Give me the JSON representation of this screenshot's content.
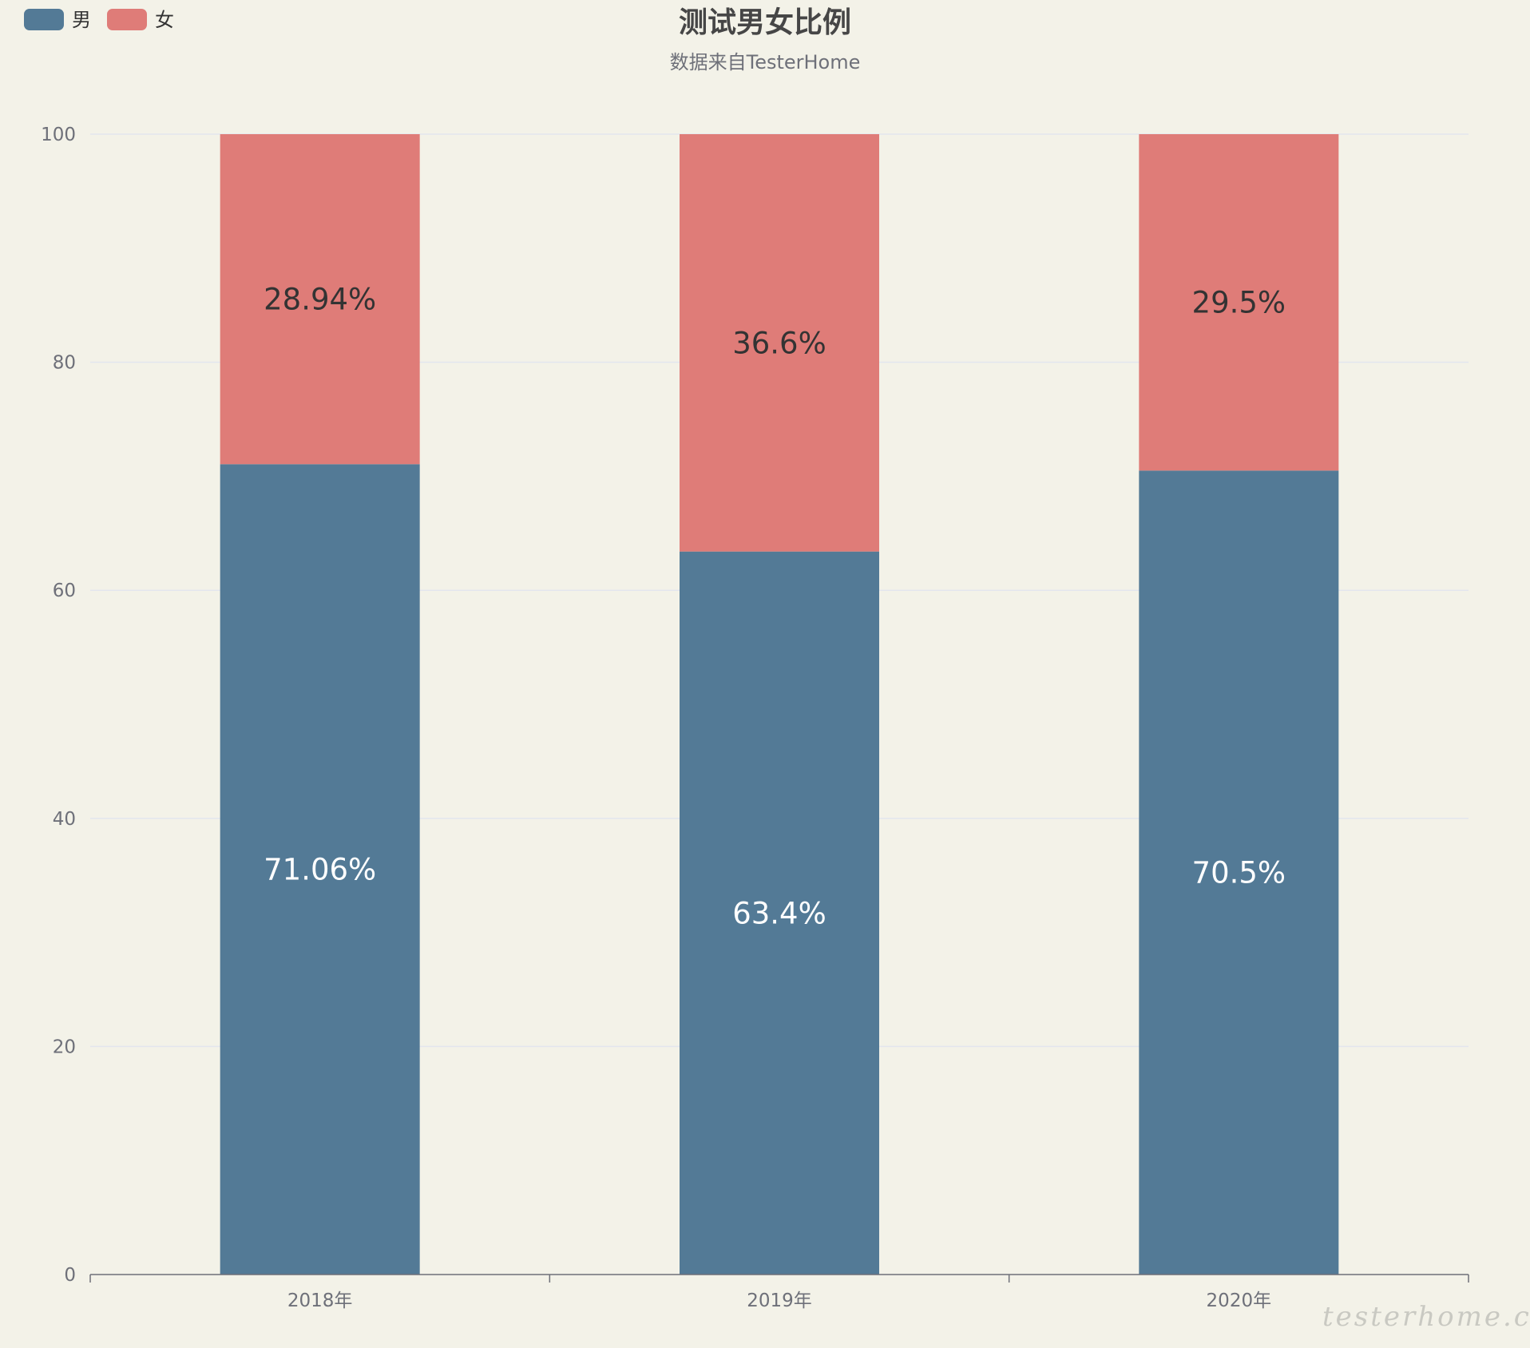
{
  "chart_data": {
    "type": "bar",
    "stacked": true,
    "title": "测试男女比例",
    "subtitle": "数据来自TesterHome",
    "categories": [
      "2018年",
      "2019年",
      "2020年"
    ],
    "series": [
      {
        "name": "男",
        "color": "#537a96",
        "values": [
          71.06,
          63.4,
          70.5
        ],
        "labels": [
          "71.06%",
          "63.4%",
          "70.5%"
        ],
        "label_color": "#ffffff"
      },
      {
        "name": "女",
        "color": "#df7c78",
        "values": [
          28.94,
          36.6,
          29.5
        ],
        "labels": [
          "28.94%",
          "36.6%",
          "29.5%"
        ],
        "label_color": "#333333"
      }
    ],
    "ylim": [
      0,
      100
    ],
    "yticks": [
      "0",
      "20",
      "40",
      "60",
      "80",
      "100"
    ],
    "grid": true,
    "legend": "top-left"
  },
  "colors": {
    "background": "#f3f2e8",
    "grid": "#e3e6ee",
    "axis": "#6e7079"
  },
  "watermark": "testerhome.com"
}
